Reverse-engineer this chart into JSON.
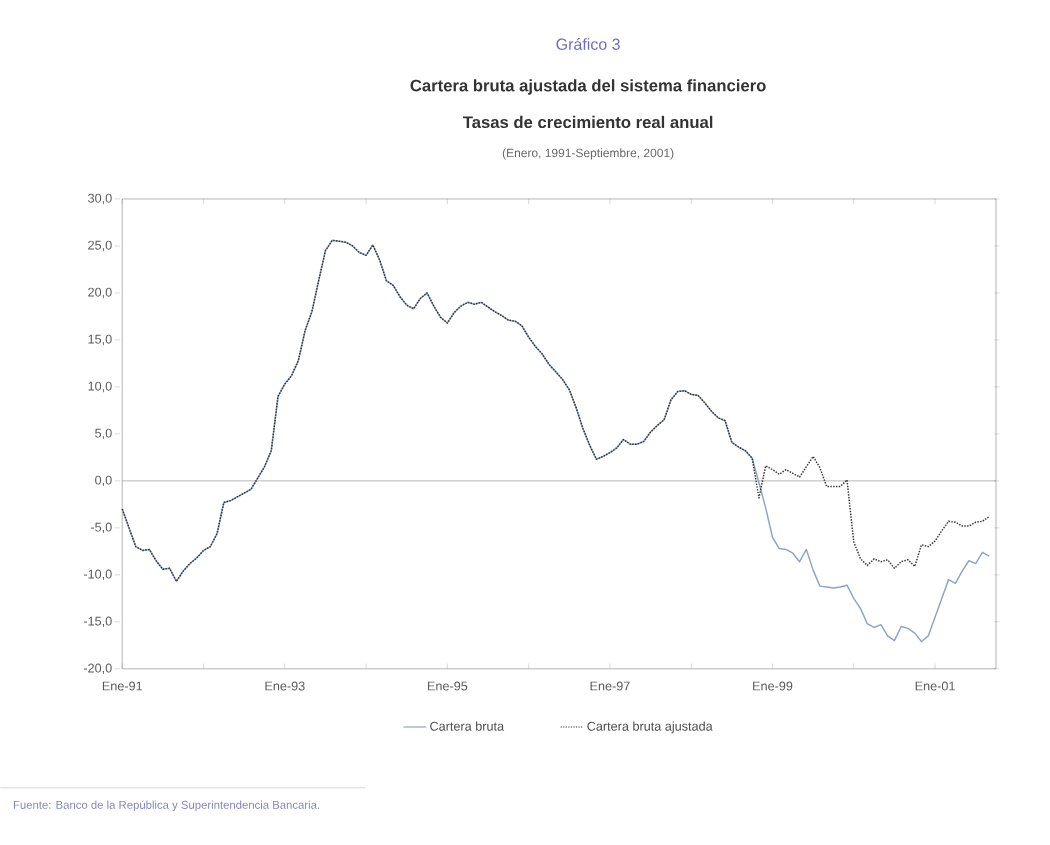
{
  "chart_data": {
    "type": "line",
    "title": "Cartera bruta ajustada del sistema financiero",
    "subtitle": "Tasas de crecimiento real anual",
    "annotations": [
      "Gráfico 3",
      "(Enero, 1991-Septiembre, 2001)",
      "Fuente: Banco de la República y Superintendencia Bancaria."
    ],
    "x": [
      "1991-01",
      "1991-02",
      "1991-03",
      "1991-04",
      "1991-05",
      "1991-06",
      "1991-07",
      "1991-08",
      "1991-09",
      "1991-10",
      "1991-11",
      "1991-12",
      "1992-01",
      "1992-02",
      "1992-03",
      "1992-04",
      "1992-05",
      "1992-06",
      "1992-07",
      "1992-08",
      "1992-09",
      "1992-10",
      "1992-11",
      "1992-12",
      "1993-01",
      "1993-02",
      "1993-03",
      "1993-04",
      "1993-05",
      "1993-06",
      "1993-07",
      "1993-08",
      "1993-09",
      "1993-10",
      "1993-11",
      "1993-12",
      "1994-01",
      "1994-02",
      "1994-03",
      "1994-04",
      "1994-05",
      "1994-06",
      "1994-07",
      "1994-08",
      "1994-09",
      "1994-10",
      "1994-11",
      "1994-12",
      "1995-01",
      "1995-02",
      "1995-03",
      "1995-04",
      "1995-05",
      "1995-06",
      "1995-07",
      "1995-08",
      "1995-09",
      "1995-10",
      "1995-11",
      "1995-12",
      "1996-01",
      "1996-02",
      "1996-03",
      "1996-04",
      "1996-05",
      "1996-06",
      "1996-07",
      "1996-08",
      "1996-09",
      "1996-10",
      "1996-11",
      "1996-12",
      "1997-01",
      "1997-02",
      "1997-03",
      "1997-04",
      "1997-05",
      "1997-06",
      "1997-07",
      "1997-08",
      "1997-09",
      "1997-10",
      "1997-11",
      "1997-12",
      "1998-01",
      "1998-02",
      "1998-03",
      "1998-04",
      "1998-05",
      "1998-06",
      "1998-07",
      "1998-08",
      "1998-09",
      "1998-10",
      "1998-11",
      "1998-12",
      "1999-01",
      "1999-02",
      "1999-03",
      "1999-04",
      "1999-05",
      "1999-06",
      "1999-07",
      "1999-08",
      "1999-09",
      "1999-10",
      "1999-11",
      "1999-12",
      "2000-01",
      "2000-02",
      "2000-03",
      "2000-04",
      "2000-05",
      "2000-06",
      "2000-07",
      "2000-08",
      "2000-09",
      "2000-10",
      "2000-11",
      "2000-12",
      "2001-01",
      "2001-02",
      "2001-03",
      "2001-04",
      "2001-05",
      "2001-06",
      "2001-07",
      "2001-08",
      "2001-09"
    ],
    "series": [
      {
        "name": "Cartera bruta",
        "color": "#8fa3c8",
        "line_style": "solid",
        "values": [
          -3.0,
          -5.0,
          -7.0,
          -7.4,
          -7.3,
          -8.5,
          -9.4,
          -9.3,
          -10.7,
          -9.6,
          -8.8,
          -8.2,
          -7.4,
          -7.0,
          -5.6,
          -2.3,
          -2.1,
          -1.7,
          -1.3,
          -0.9,
          0.3,
          1.5,
          3.2,
          9.0,
          10.3,
          11.2,
          12.8,
          16.0,
          18.0,
          21.3,
          24.5,
          25.6,
          25.5,
          25.4,
          25.0,
          24.3,
          24.0,
          25.1,
          23.5,
          21.3,
          20.8,
          19.6,
          18.7,
          18.3,
          19.4,
          20.0,
          18.6,
          17.4,
          16.8,
          17.9,
          18.6,
          19.0,
          18.8,
          19.0,
          18.5,
          18.0,
          17.6,
          17.1,
          17.0,
          16.5,
          15.3,
          14.3,
          13.5,
          12.4,
          11.6,
          10.8,
          9.7,
          7.8,
          5.6,
          3.8,
          2.3,
          2.6,
          3.0,
          3.5,
          4.4,
          3.9,
          3.9,
          4.2,
          5.2,
          5.9,
          6.5,
          8.6,
          9.5,
          9.6,
          9.2,
          9.1,
          8.3,
          7.4,
          6.7,
          6.4,
          4.1,
          3.6,
          3.2,
          2.4,
          -0.2,
          -2.9,
          -6.0,
          -7.2,
          -7.3,
          -7.7,
          -8.6,
          -7.3,
          -9.5,
          -11.2,
          -11.3,
          -11.4,
          -11.3,
          -11.1,
          -12.5,
          -13.6,
          -15.2,
          -15.6,
          -15.3,
          -16.5,
          -17.0,
          -15.5,
          -15.7,
          -16.2,
          -17.1,
          -16.5,
          -14.5,
          -12.5,
          -10.5,
          -10.9,
          -9.6,
          -8.5,
          -8.8,
          -7.6,
          -8.0
        ]
      },
      {
        "name": "Cartera bruta ajustada",
        "color": "#333333",
        "line_style": "dotted",
        "values": [
          -3.0,
          -5.0,
          -7.0,
          -7.4,
          -7.3,
          -8.5,
          -9.4,
          -9.3,
          -10.7,
          -9.6,
          -8.8,
          -8.2,
          -7.4,
          -7.0,
          -5.6,
          -2.3,
          -2.1,
          -1.7,
          -1.3,
          -0.9,
          0.3,
          1.5,
          3.2,
          9.0,
          10.3,
          11.2,
          12.8,
          16.0,
          18.0,
          21.3,
          24.5,
          25.6,
          25.5,
          25.4,
          25.0,
          24.3,
          24.0,
          25.1,
          23.5,
          21.3,
          20.8,
          19.6,
          18.7,
          18.3,
          19.4,
          20.0,
          18.6,
          17.4,
          16.8,
          17.9,
          18.6,
          19.0,
          18.8,
          19.0,
          18.5,
          18.0,
          17.6,
          17.1,
          17.0,
          16.5,
          15.3,
          14.3,
          13.5,
          12.4,
          11.6,
          10.8,
          9.7,
          7.8,
          5.6,
          3.8,
          2.3,
          2.6,
          3.0,
          3.5,
          4.4,
          3.9,
          3.9,
          4.2,
          5.2,
          5.9,
          6.5,
          8.6,
          9.5,
          9.6,
          9.2,
          9.1,
          8.3,
          7.4,
          6.7,
          6.4,
          4.1,
          3.6,
          3.2,
          2.4,
          -1.8,
          1.6,
          1.2,
          0.7,
          1.2,
          0.8,
          0.4,
          1.5,
          2.6,
          1.4,
          -0.6,
          -0.6,
          -0.6,
          0.1,
          -6.5,
          -8.3,
          -9.0,
          -8.3,
          -8.6,
          -8.4,
          -9.3,
          -8.6,
          -8.4,
          -9.1,
          -6.8,
          -7.0,
          -6.4,
          -5.3,
          -4.3,
          -4.4,
          -4.8,
          -4.8,
          -4.4,
          -4.3,
          -3.8
        ]
      }
    ],
    "xlim": [
      "1991-01",
      "2001-10"
    ],
    "xticks": [
      {
        "value": "1991-01",
        "label": "Ene-91"
      },
      {
        "value": "1992-01",
        "label": null
      },
      {
        "value": "1993-01",
        "label": "Ene-93"
      },
      {
        "value": "1994-01",
        "label": null
      },
      {
        "value": "1995-01",
        "label": "Ene-95"
      },
      {
        "value": "1996-01",
        "label": null
      },
      {
        "value": "1997-01",
        "label": "Ene-97"
      },
      {
        "value": "1998-01",
        "label": null
      },
      {
        "value": "1999-01",
        "label": "Ene-99"
      },
      {
        "value": "2000-01",
        "label": null
      },
      {
        "value": "2001-01",
        "label": "Ene-01"
      }
    ],
    "ylim": [
      -20,
      30
    ],
    "yticks": [
      {
        "value": -20,
        "label": "-20,0"
      },
      {
        "value": -15,
        "label": "-15,0"
      },
      {
        "value": -10,
        "label": "-10,0"
      },
      {
        "value": -5,
        "label": "-5,0"
      },
      {
        "value": 0,
        "label": "0,0"
      },
      {
        "value": 5,
        "label": "5,0"
      },
      {
        "value": 10,
        "label": "10,0"
      },
      {
        "value": 15,
        "label": "15,0"
      },
      {
        "value": 20,
        "label": "20,0"
      },
      {
        "value": 25,
        "label": "25,0"
      },
      {
        "value": 30,
        "label": "30,0"
      }
    ],
    "ref_lines": [
      {
        "axis": "y",
        "value": 0,
        "color": "#777777"
      }
    ],
    "grid": false,
    "legend": "bottom",
    "marker": "none"
  }
}
